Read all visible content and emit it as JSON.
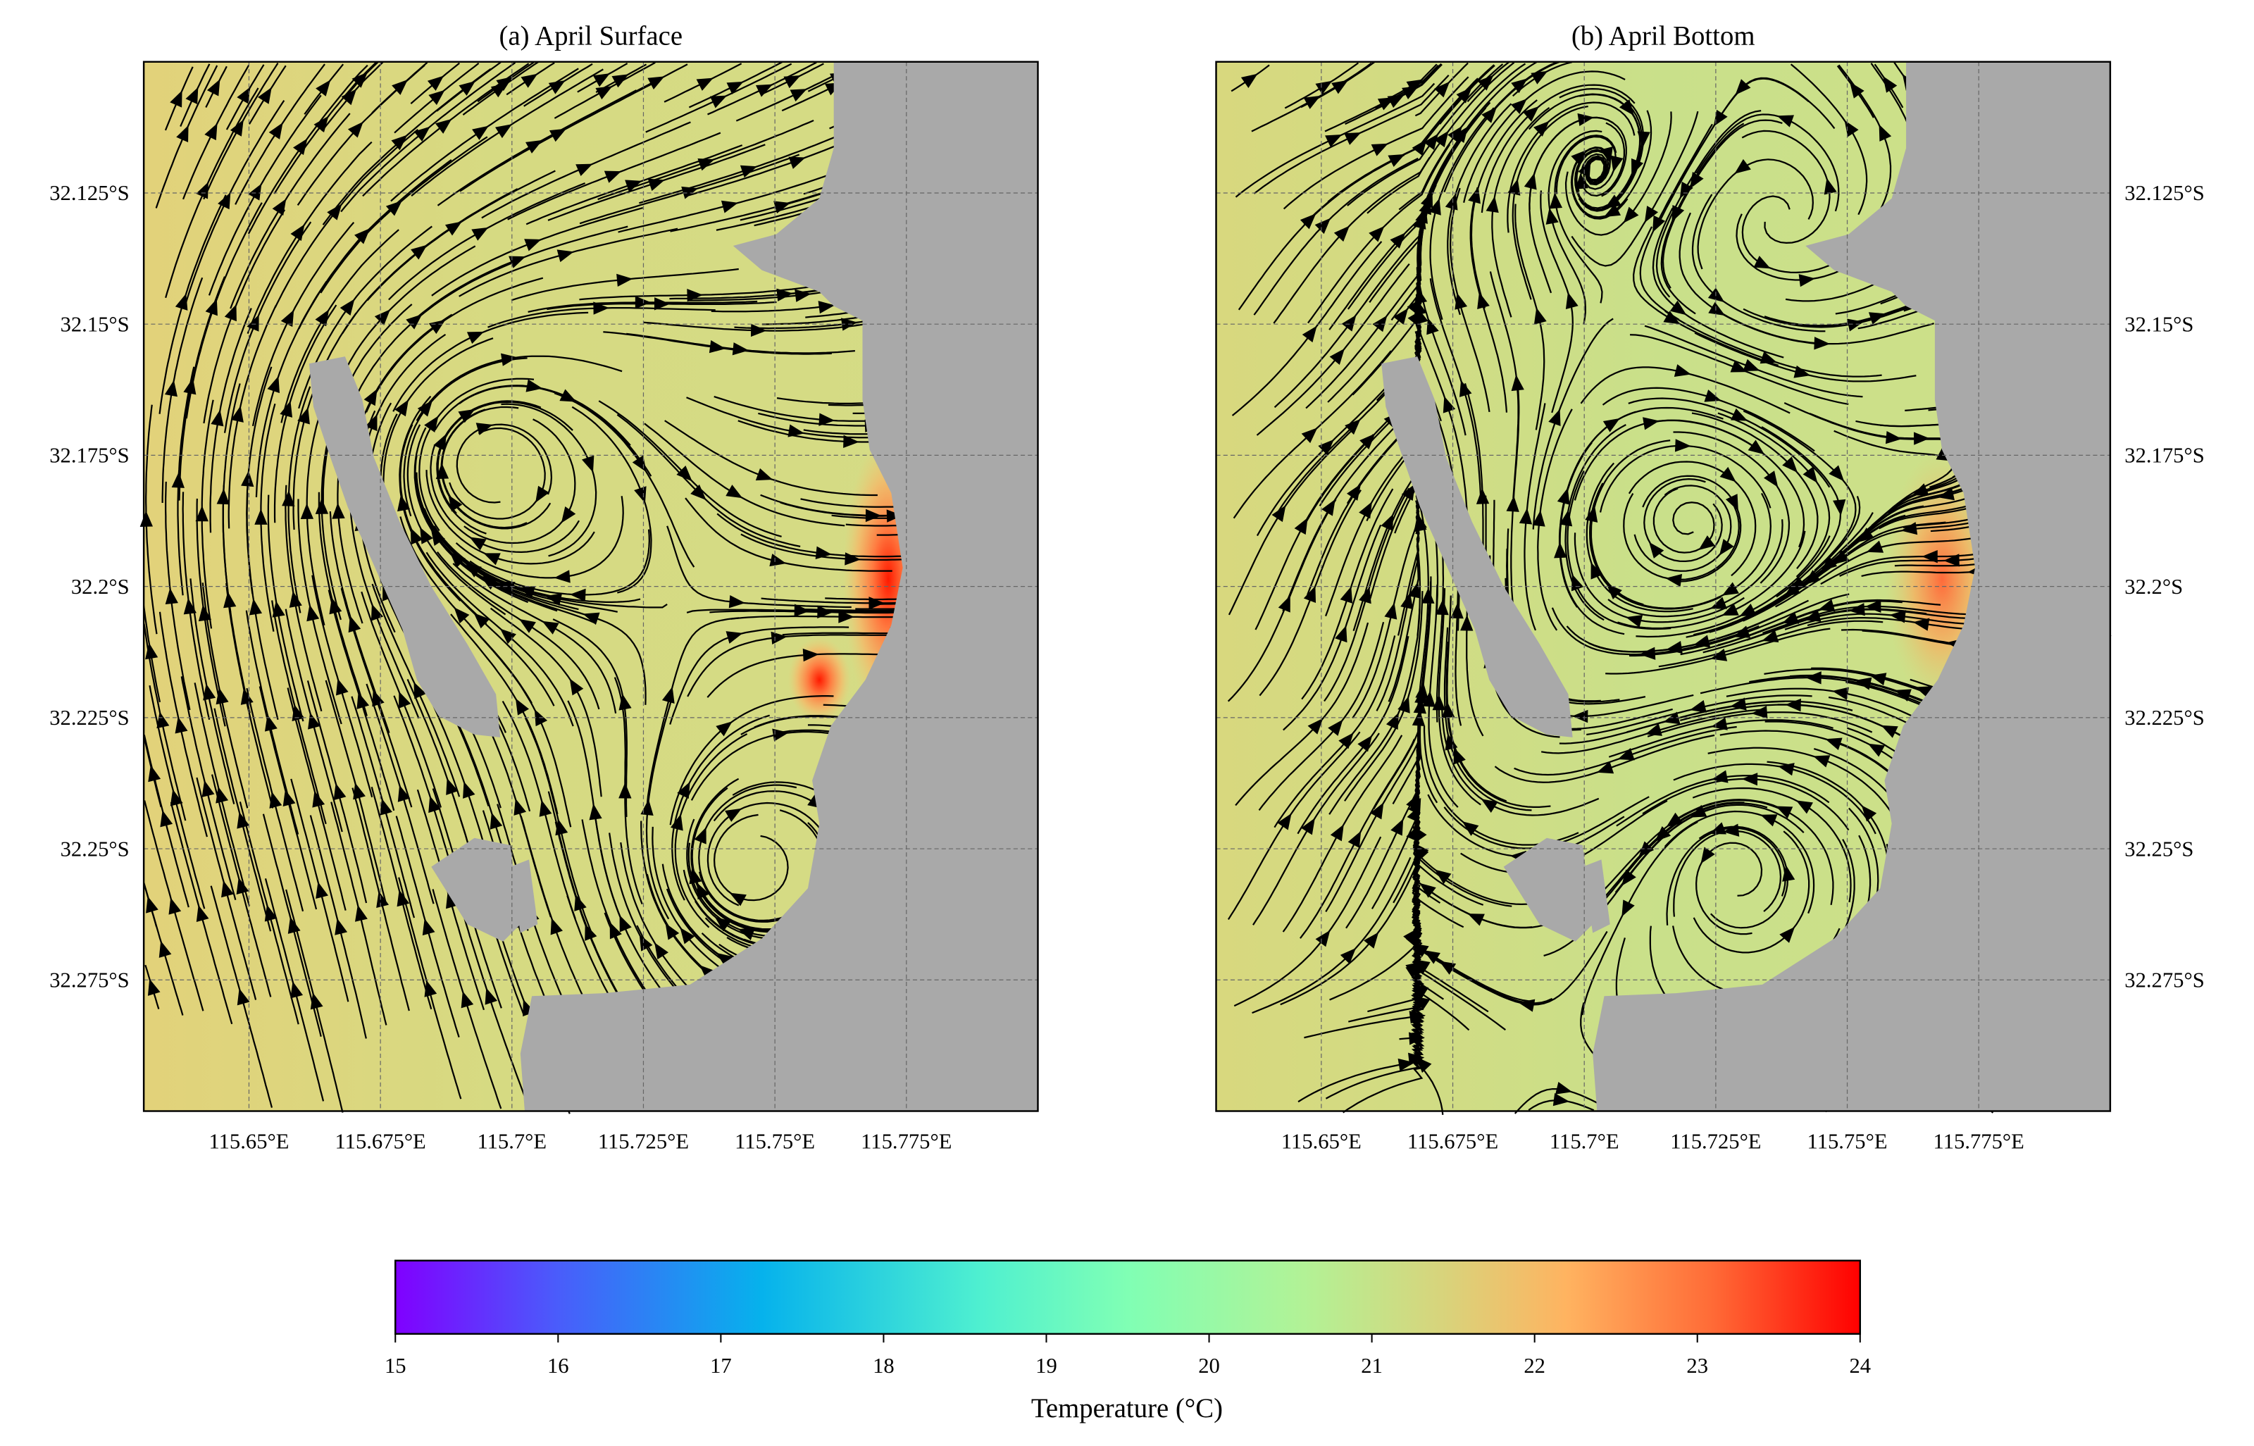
{
  "chart_data": {
    "type": "heatmap",
    "overlay": "streamlines",
    "panels": [
      {
        "title": "(a) April Surface",
        "xlim": [
          115.63,
          115.8
        ],
        "ylim": [
          -32.3,
          -32.1
        ],
        "xticks": [
          115.65,
          115.675,
          115.7,
          115.725,
          115.75,
          115.775
        ],
        "xtick_labels": [
          "115.65°E",
          "115.675°E",
          "115.7°E",
          "115.725°E",
          "115.75°E",
          "115.775°E"
        ],
        "yticks": [
          -32.125,
          -32.15,
          -32.175,
          -32.2,
          -32.225,
          -32.25,
          -32.275
        ],
        "ytick_labels": [
          "32.125°S",
          "32.15°S",
          "32.175°S",
          "32.2°S",
          "32.225°S",
          "32.25°S",
          "32.275°S"
        ],
        "ytick_side": "left",
        "grid": true,
        "temperature_range_approx": [
          19.5,
          24
        ]
      },
      {
        "title": "(b) April Bottom",
        "xlim": [
          115.63,
          115.8
        ],
        "ylim": [
          -32.3,
          -32.1
        ],
        "xticks": [
          115.65,
          115.675,
          115.7,
          115.725,
          115.75,
          115.775
        ],
        "xtick_labels": [
          "115.65°E",
          "115.675°E",
          "115.7°E",
          "115.725°E",
          "115.75°E",
          "115.775°E"
        ],
        "yticks": [
          -32.125,
          -32.15,
          -32.175,
          -32.2,
          -32.225,
          -32.25,
          -32.275
        ],
        "ytick_labels": [
          "32.125°S",
          "32.15°S",
          "32.175°S",
          "32.2°S",
          "32.225°S",
          "32.25°S",
          "32.275°S"
        ],
        "ytick_side": "right",
        "grid": true,
        "temperature_range_approx": [
          19.5,
          23
        ]
      }
    ],
    "colorbar": {
      "label": "Temperature (°C)",
      "range": [
        15,
        24
      ],
      "ticks": [
        15,
        16,
        17,
        18,
        19,
        20,
        21,
        22,
        23,
        24
      ],
      "tick_labels": [
        "15",
        "16",
        "17",
        "18",
        "19",
        "20",
        "21",
        "22",
        "23",
        "24"
      ],
      "colormap": "rainbow",
      "placement": "bottom"
    }
  },
  "colors": {
    "land": "#a9a9a9",
    "surface_water": "#d6db85",
    "bottom_water": "#cde08a",
    "streamline": "#000000"
  }
}
